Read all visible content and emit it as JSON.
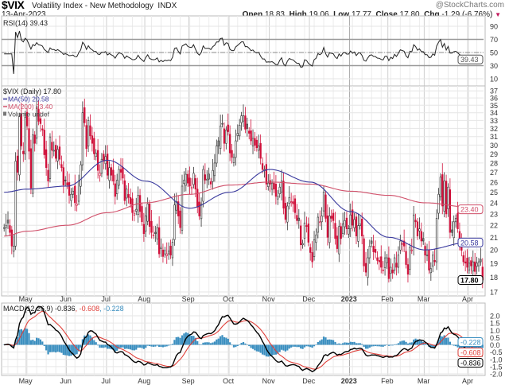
{
  "header": {
    "symbol": "$VIX",
    "name": "Volatility Index - New Methodology",
    "exchange": "INDX",
    "date": "13-Apr-2023",
    "watermark": "@StockCharts.com",
    "open_label": "Open",
    "open": "18.83",
    "high_label": "High",
    "high": "19.06",
    "low_label": "Low",
    "low": "17.77",
    "close_label": "Close",
    "close": "17.80",
    "chg_label": "Chg",
    "chg": "-1.29 (-6.76%)",
    "chg_arrow": "▼"
  },
  "colors": {
    "down": "#d0103a",
    "up": "#8c8c8c",
    "ma50": "#3a3a9e",
    "ma200": "#d0506a",
    "macd": "#000000",
    "signal": "#e0403a",
    "histogram": "#3b8fc0"
  },
  "chart_data": [
    {
      "type": "candlestick",
      "panel": "price",
      "legend": {
        "price": "$VIX (Daily) 17.80",
        "ma50": "MA(50) 20.58",
        "ma200": "MA(200) 23.40",
        "volume": "Volume undef"
      },
      "last_labels": {
        "close": "17.80",
        "ma50": "20.58",
        "ma200": "23.40"
      },
      "y_ticks": [
        "17",
        "18",
        "19",
        "20",
        "21",
        "22",
        "23",
        "24",
        "25",
        "26",
        "27",
        "28",
        "29",
        "30",
        "31",
        "32",
        "33",
        "34",
        "35",
        "36",
        "37"
      ],
      "ylim": [
        17,
        37
      ],
      "y_scale": "log",
      "grid": true,
      "x_ticks": [
        "May",
        "Jun",
        "Jul",
        "Aug",
        "Sep",
        "Oct",
        "Nov",
        "Dec",
        "2023",
        "Feb",
        "Mar",
        "Apr"
      ],
      "close": [
        21.8,
        22.0,
        22.2,
        21.4,
        20.3,
        20.3,
        28.2,
        27.0,
        33.5,
        29.9,
        29.0,
        33.4,
        32.3,
        29.3,
        25.4,
        31.2,
        30.2,
        34.8,
        32.9,
        32.6,
        31.8,
        28.9,
        27.5,
        26.1,
        30.96,
        29.4,
        29.4,
        28.5,
        29.5,
        28.4,
        27.5,
        25.7,
        26.2,
        25.7,
        24.7,
        24.8,
        25.1,
        24.0,
        23.9,
        26.1,
        27.8,
        34.0,
        32.7,
        29.6,
        33.0,
        31.1,
        30.2,
        29.0,
        29.1,
        27.2,
        26.9,
        28.4,
        28.2,
        28.7,
        26.7,
        27.5,
        26.7,
        26.1,
        24.6,
        26.2,
        27.3,
        27.0,
        26.4,
        24.2,
        25.3,
        24.5,
        23.9,
        23.1,
        23.0,
        23.4,
        24.7,
        23.2,
        22.3,
        21.3,
        22.8,
        23.9,
        21.9,
        21.4,
        21.2,
        21.3,
        21.8,
        19.7,
        20.2,
        19.5,
        19.95,
        19.7,
        19.9,
        19.6,
        20.6,
        23.8,
        24.1,
        22.8,
        21.8,
        25.6,
        26.2,
        26.8,
        25.9,
        25.6,
        25.5,
        26.9,
        25.3,
        23.6,
        22.8,
        23.9,
        27.3,
        26.2,
        26.3,
        26.3,
        25.8,
        27.2,
        27.99,
        29.9,
        29.9,
        32.3,
        32.6,
        30.2,
        31.8,
        31.6,
        29.1,
        28.6,
        28.6,
        30.5,
        31.4,
        32.4,
        33.6,
        33.6,
        31.9,
        32.0,
        31.4,
        30.5,
        30.8,
        29.98,
        29.7,
        29.9,
        28.5,
        27.3,
        27.3,
        25.8,
        25.9,
        25.8,
        25.9,
        25.3,
        24.6,
        24.6,
        25.5,
        26.1,
        23.5,
        22.5,
        23.7,
        24.5,
        24.1,
        23.9,
        23.1,
        22.4,
        22.4,
        20.4,
        20.5,
        22.2,
        21.9,
        20.6,
        19.8,
        19.1,
        20.8,
        21.2,
        22.7,
        22.3,
        22.8,
        25.0,
        22.6,
        21.0,
        22.8,
        22.6,
        22.4,
        20.9,
        20.1,
        21.9,
        20.9,
        22.1,
        22.4,
        21.7,
        21.7,
        22.9,
        22.0,
        22.5,
        21.1,
        21.97,
        22.1,
        21.1,
        18.8,
        18.35,
        19.4,
        20.3,
        20.5,
        19.85,
        19.8,
        19.2,
        19.1,
        18.7,
        18.5,
        19.4,
        19.4,
        17.9,
        18.7,
        18.3,
        19.4,
        18.7,
        19.6,
        20.7,
        20.5,
        20.3,
        18.9,
        18.2,
        20.2,
        20.0,
        22.9,
        22.3,
        21.1,
        21.7,
        20.7,
        20.7,
        19.6,
        19.6,
        18.5,
        18.6,
        19.6,
        19.1,
        22.6,
        24.8,
        26.5,
        23.7,
        26.1,
        22.99,
        25.5,
        21.4,
        21.4,
        22.3,
        22.6,
        21.7,
        20.6,
        19.97,
        19.1,
        19.0,
        18.7,
        19.0,
        18.8,
        19.1,
        18.4,
        19.0,
        19.1,
        19.1,
        17.8
      ],
      "ma50_monthly": [
        25.0,
        25.3,
        25.6,
        28.3,
        26.1,
        23.5,
        25.0,
        27.3,
        26.0,
        23.2,
        21.0,
        20.0,
        20.6,
        20.58
      ],
      "ma200_monthly": [
        21.1,
        21.5,
        22.0,
        23.1,
        24.0,
        24.8,
        25.7,
        26.0,
        25.8,
        25.1,
        24.7,
        24.0,
        23.6,
        23.4
      ]
    },
    {
      "type": "line",
      "panel": "rsi",
      "legend": "RSI(14) 39.43",
      "last_label": "39.43",
      "y_ticks": [
        "90",
        "70",
        "50",
        "30",
        "10"
      ],
      "ylim": [
        0,
        100
      ],
      "reference_lines": [
        70,
        50,
        30
      ]
    },
    {
      "type": "line+bar",
      "panel": "macd",
      "legend": {
        "name": "MACD(12,26,9)",
        "macd": "-0.836",
        "signal": "-0.608",
        "histogram": "-0.228"
      },
      "last_labels": {
        "macd": "-0.836",
        "signal": "-0.608",
        "histogram": "-0.228"
      },
      "y_ticks": [
        "2.0",
        "1.5",
        "1.0",
        "0.5",
        "0.0",
        "-0.5",
        "-1.0",
        "-1.5",
        "-2.0"
      ],
      "ylim": [
        -2.2,
        2.3
      ],
      "x_ticks": [
        "May",
        "Jun",
        "Jul",
        "Aug",
        "Sep",
        "Oct",
        "Nov",
        "Dec",
        "2023",
        "Feb",
        "Mar",
        "Apr"
      ]
    }
  ]
}
